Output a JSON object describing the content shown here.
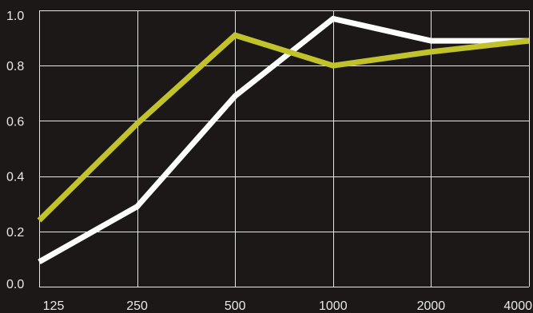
{
  "chart_data": {
    "type": "line",
    "title": "",
    "xlabel": "",
    "ylabel": "",
    "x": [
      "125",
      "250",
      "500",
      "1000",
      "2000",
      "4000"
    ],
    "ylim": [
      0,
      1
    ],
    "y_ticks": [
      "0.0",
      "0.2",
      "0.4",
      "0.6",
      "0.8",
      "1.0"
    ],
    "grid": true,
    "legend": "none",
    "background": "#1c1818",
    "grid_color": "#e6e6e6",
    "series": [
      {
        "color": "#ffffff",
        "values": [
          0.09,
          0.29,
          0.69,
          0.97,
          0.89,
          0.89
        ]
      },
      {
        "color": "#c2c22a",
        "values": [
          0.24,
          0.59,
          0.91,
          0.8,
          0.85,
          0.89
        ]
      }
    ]
  }
}
